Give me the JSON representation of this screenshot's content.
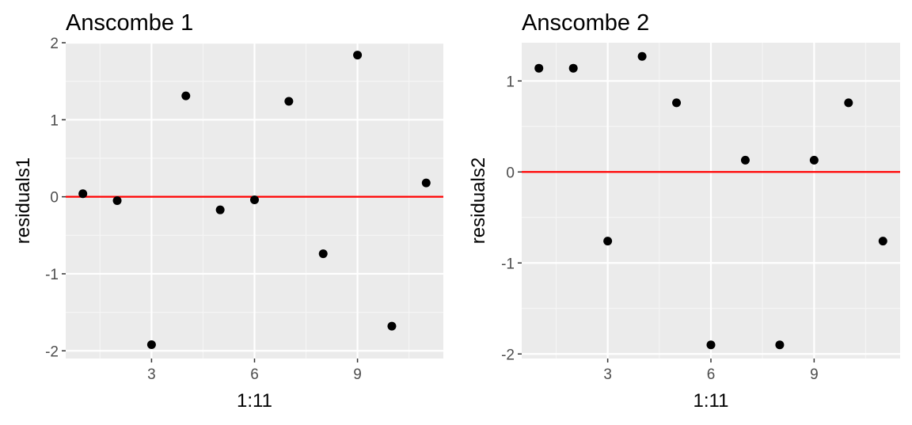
{
  "colors": {
    "panel_bg": "#ebebeb",
    "grid_major": "#ffffff",
    "grid_minor": "#f5f5f5",
    "point": "#000000",
    "ref_line": "#ff0000",
    "tick_text": "#4d4d4d",
    "axis_tick": "#333333"
  },
  "chart_data": [
    {
      "type": "scatter",
      "title": "Anscombe 1",
      "xlabel": "1:11",
      "ylabel": "residuals1",
      "x": [
        1,
        2,
        3,
        4,
        5,
        6,
        7,
        8,
        9,
        10,
        11
      ],
      "y": [
        0.04,
        -0.05,
        -1.92,
        1.31,
        -0.17,
        -0.04,
        1.24,
        -0.74,
        1.84,
        -1.68,
        0.18
      ],
      "xlim": [
        0.5,
        11.5
      ],
      "ylim": [
        -2.1,
        2.0
      ],
      "xticks": [
        3,
        6,
        9
      ],
      "yticks": [
        -2,
        -1,
        0,
        1,
        2
      ],
      "xtick_labels": [
        "3",
        "6",
        "9"
      ],
      "ytick_labels": [
        "-2",
        "-1",
        "0",
        "1",
        "2"
      ],
      "hline": 0,
      "grid": true
    },
    {
      "type": "scatter",
      "title": "Anscombe 2",
      "xlabel": "1:11",
      "ylabel": "residuals2",
      "x": [
        1,
        2,
        3,
        4,
        5,
        6,
        7,
        8,
        9,
        10,
        11
      ],
      "y": [
        1.14,
        1.14,
        -0.76,
        1.27,
        0.76,
        -1.9,
        0.13,
        -1.9,
        0.13,
        0.76,
        -0.76
      ],
      "xlim": [
        0.5,
        11.5
      ],
      "ylim": [
        -2.05,
        1.42
      ],
      "xticks": [
        3,
        6,
        9
      ],
      "yticks": [
        -2,
        -1,
        0,
        1
      ],
      "xtick_labels": [
        "3",
        "6",
        "9"
      ],
      "ytick_labels": [
        "-2",
        "-1",
        "0",
        "1"
      ],
      "hline": 0,
      "grid": true
    }
  ]
}
